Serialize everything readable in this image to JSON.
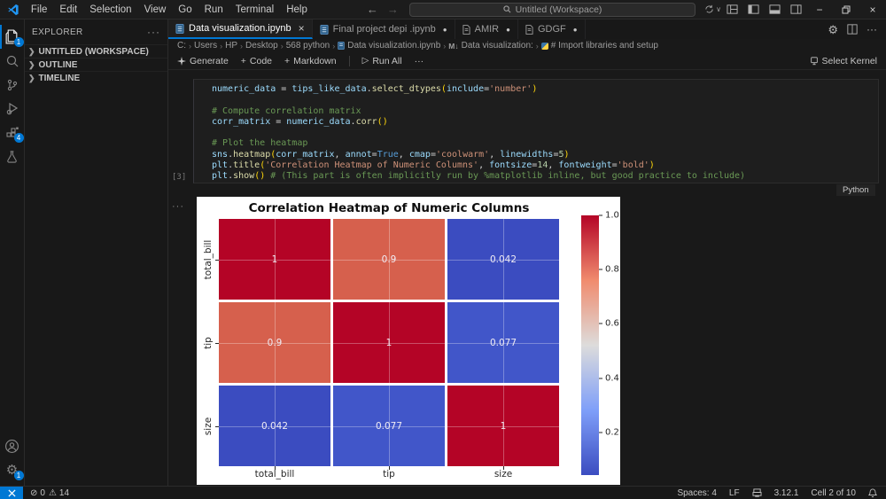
{
  "title_bar": {
    "menus": [
      "File",
      "Edit",
      "Selection",
      "View",
      "Go",
      "Run",
      "Terminal",
      "Help"
    ],
    "search_placeholder": "Untitled (Workspace)"
  },
  "activity_bar": {
    "explorer_badge": "1",
    "extensions_badge": "4",
    "settings_badge": "1"
  },
  "sidebar": {
    "title": "EXPLORER",
    "sections": [
      "UNTITLED (WORKSPACE)",
      "OUTLINE",
      "TIMELINE"
    ]
  },
  "tabs": [
    {
      "label": "Data visualization.ipynb"
    },
    {
      "label": "Final project depi .ipynb"
    },
    {
      "label": "AMIR"
    },
    {
      "label": "GDGF"
    }
  ],
  "breadcrumb": {
    "items": [
      "C:",
      "Users",
      "HP",
      "Desktop",
      "568 python",
      "Data visualization.ipynb",
      "Data visualization:",
      "# Import libraries and setup"
    ],
    "markdown_badge": "M↓"
  },
  "notebook_toolbar": {
    "generate": "Generate",
    "code": "Code",
    "markdown": "Markdown",
    "run_all": "Run All",
    "select_kernel": "Select Kernel"
  },
  "cell": {
    "execution_count": "[3]",
    "language": "Python",
    "lines": [
      [
        [
          "v",
          "numeric_data"
        ],
        [
          "o",
          " = "
        ],
        [
          "v",
          "tips_like_data"
        ],
        [
          "o",
          "."
        ],
        [
          "f",
          "select_dtypes"
        ],
        [
          "b",
          "("
        ],
        [
          "v",
          "include"
        ],
        [
          "o",
          "="
        ],
        [
          "s",
          "'number'"
        ],
        [
          "b",
          ")"
        ]
      ],
      [],
      [
        [
          "c",
          "# Compute correlation matrix"
        ]
      ],
      [
        [
          "v",
          "corr_matrix"
        ],
        [
          "o",
          " = "
        ],
        [
          "v",
          "numeric_data"
        ],
        [
          "o",
          "."
        ],
        [
          "f",
          "corr"
        ],
        [
          "b",
          "()"
        ]
      ],
      [],
      [
        [
          "c",
          "# Plot the heatmap"
        ]
      ],
      [
        [
          "v",
          "sns"
        ],
        [
          "o",
          "."
        ],
        [
          "f",
          "heatmap"
        ],
        [
          "b",
          "("
        ],
        [
          "v",
          "corr_matrix"
        ],
        [
          "o",
          ", "
        ],
        [
          "v",
          "annot"
        ],
        [
          "o",
          "="
        ],
        [
          "k",
          "True"
        ],
        [
          "o",
          ", "
        ],
        [
          "v",
          "cmap"
        ],
        [
          "o",
          "="
        ],
        [
          "s",
          "'coolwarm'"
        ],
        [
          "o",
          ", "
        ],
        [
          "v",
          "linewidths"
        ],
        [
          "o",
          "="
        ],
        [
          "n",
          "5"
        ],
        [
          "b",
          ")"
        ]
      ],
      [
        [
          "v",
          "plt"
        ],
        [
          "o",
          "."
        ],
        [
          "f",
          "title"
        ],
        [
          "b",
          "("
        ],
        [
          "s",
          "'Correlation Heatmap of Numeric Columns'"
        ],
        [
          "o",
          ", "
        ],
        [
          "v",
          "fontsize"
        ],
        [
          "o",
          "="
        ],
        [
          "n",
          "14"
        ],
        [
          "o",
          ", "
        ],
        [
          "v",
          "fontweight"
        ],
        [
          "o",
          "="
        ],
        [
          "s",
          "'bold'"
        ],
        [
          "b",
          ")"
        ]
      ],
      [
        [
          "v",
          "plt"
        ],
        [
          "o",
          "."
        ],
        [
          "f",
          "show"
        ],
        [
          "b",
          "()"
        ],
        [
          "c",
          " # (This part is often implicitly run by %matplotlib inline, but good practice to include)"
        ]
      ]
    ]
  },
  "chart_data": {
    "type": "heatmap",
    "title": "Correlation Heatmap of Numeric Columns",
    "categories": [
      "total_bill",
      "tip",
      "size"
    ],
    "matrix": [
      [
        1.0,
        0.9,
        0.042
      ],
      [
        0.9,
        1.0,
        0.077
      ],
      [
        0.042,
        0.077,
        1.0
      ]
    ],
    "cell_labels": [
      [
        "1",
        "0.9",
        "0.042"
      ],
      [
        "0.9",
        "1",
        "0.077"
      ],
      [
        "0.042",
        "0.077",
        "1"
      ]
    ],
    "cell_colors": [
      [
        "#b40426",
        "#d6604d",
        "#3b4cc0"
      ],
      [
        "#d6604d",
        "#b40426",
        "#4156c9"
      ],
      [
        "#3b4cc0",
        "#4156c9",
        "#b40426"
      ]
    ],
    "cmap": "coolwarm",
    "colorbar_ticks": [
      1.0,
      0.8,
      0.6,
      0.4,
      0.2
    ],
    "vmin": 0.042,
    "vmax": 1.0,
    "colorbar_gradient": [
      "#3b4cc0",
      "#7f9ff9",
      "#dddcdb",
      "#f08b6e",
      "#b40426"
    ],
    "legend_position": "right-colorbar"
  },
  "status_bar": {
    "errors": "0",
    "warnings": "14",
    "spaces": "Spaces: 4",
    "eol": "LF",
    "python_version": "3.12.1",
    "cell_position": "Cell 2 of 10"
  }
}
